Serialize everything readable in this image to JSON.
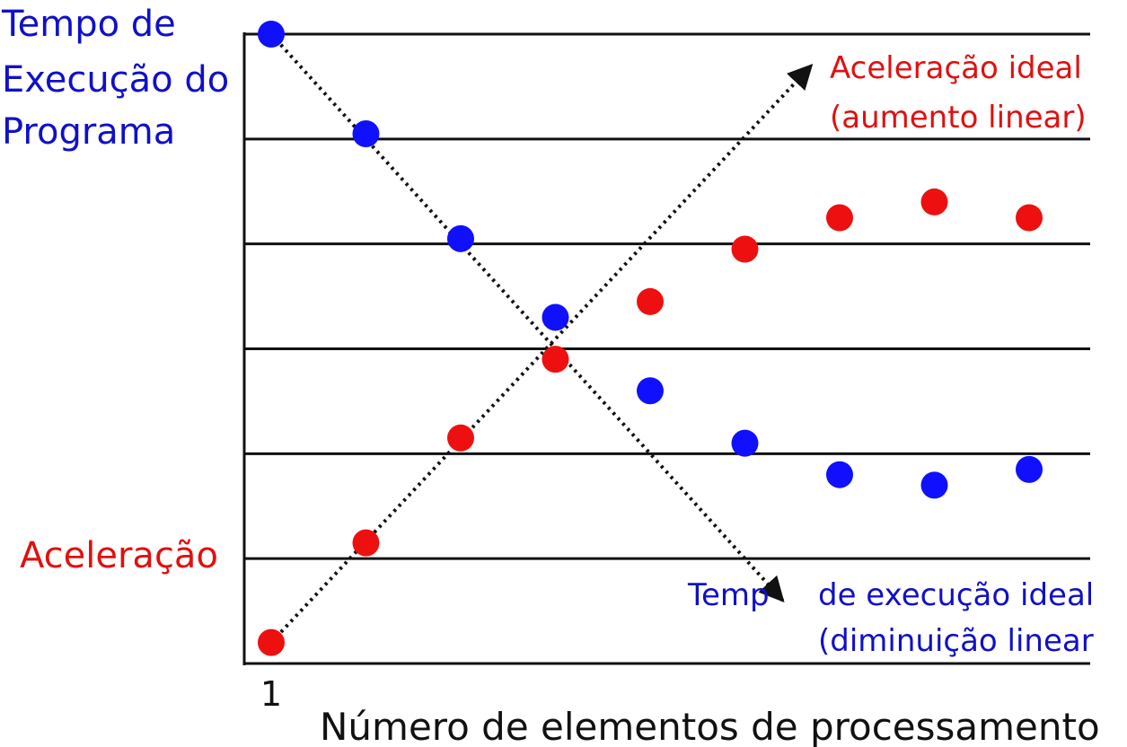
{
  "chart_data": {
    "type": "scatter",
    "x_axis": {
      "label": "Número de elementos de processamento",
      "tick_labels": [
        "1"
      ],
      "range": [
        1,
        9
      ]
    },
    "y_axis": {
      "range": [
        0,
        6
      ],
      "gridlines": 6
    },
    "grid": true,
    "series": [
      {
        "name": "Tempo de Execução do Programa",
        "color": "#1010ff",
        "points": [
          {
            "x": 1,
            "y": 6.0
          },
          {
            "x": 2,
            "y": 5.05
          },
          {
            "x": 3,
            "y": 4.05
          },
          {
            "x": 4,
            "y": 3.3
          },
          {
            "x": 5,
            "y": 2.6
          },
          {
            "x": 6,
            "y": 2.1
          },
          {
            "x": 7,
            "y": 1.8
          },
          {
            "x": 8,
            "y": 1.7
          },
          {
            "x": 9,
            "y": 1.85
          }
        ]
      },
      {
        "name": "Aceleração",
        "color": "#ee1010",
        "points": [
          {
            "x": 1,
            "y": 0.2
          },
          {
            "x": 2,
            "y": 1.15
          },
          {
            "x": 3,
            "y": 2.15
          },
          {
            "x": 4,
            "y": 2.9
          },
          {
            "x": 5,
            "y": 3.45
          },
          {
            "x": 6,
            "y": 3.95
          },
          {
            "x": 7,
            "y": 4.25
          },
          {
            "x": 8,
            "y": 4.4
          },
          {
            "x": 9,
            "y": 4.25
          }
        ]
      }
    ],
    "reference_lines": [
      {
        "name": "Aceleração ideal (aumento linear)",
        "style": "dotted-arrow",
        "from": {
          "x": 1,
          "y": 0.2
        },
        "to": {
          "x": 6.7,
          "y": 5.7
        }
      },
      {
        "name": "Temp de execução ideal (diminuição linear)",
        "style": "dotted-arrow",
        "from": {
          "x": 1,
          "y": 6.0
        },
        "to": {
          "x": 6.4,
          "y": 0.6
        }
      }
    ],
    "annotations": {
      "blue_series_label": [
        "Tempo de",
        "Execução do",
        "Programa"
      ],
      "red_series_label": "Aceleração",
      "ideal_speedup_label": [
        "Aceleração ideal",
        "(aumento linear)"
      ],
      "ideal_time_label": [
        "Temp",
        "de execução ideal",
        "(diminuição linear"
      ]
    },
    "colors": {
      "blue_text": "#1010c8",
      "red_text": "#e01010",
      "grid": "#111111"
    }
  }
}
